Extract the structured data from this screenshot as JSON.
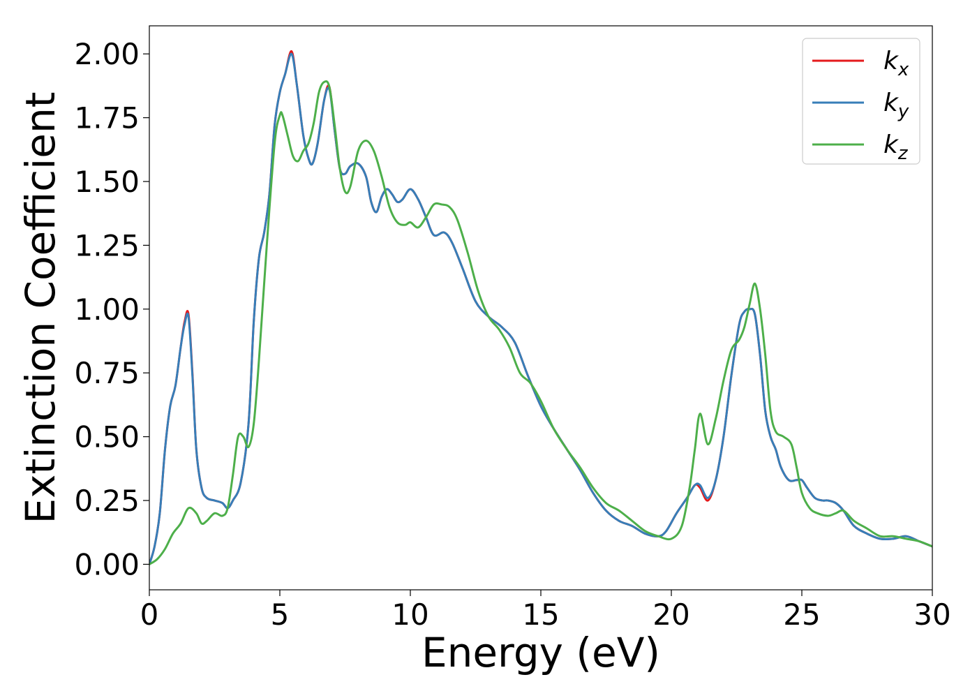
{
  "chart_data": {
    "type": "line",
    "title": "",
    "xlabel": "Energy (eV)",
    "ylabel": "Extinction Coefficient",
    "xlim": [
      0,
      30
    ],
    "ylim": [
      -0.1,
      2.11
    ],
    "xticks": [
      0,
      5,
      10,
      15,
      20,
      25,
      30
    ],
    "xtick_labels": [
      "0",
      "5",
      "10",
      "15",
      "20",
      "25",
      "30"
    ],
    "yticks": [
      0.0,
      0.25,
      0.5,
      0.75,
      1.0,
      1.25,
      1.5,
      1.75,
      2.0
    ],
    "ytick_labels": [
      "0.00",
      "0.25",
      "0.50",
      "0.75",
      "1.00",
      "1.25",
      "1.50",
      "1.75",
      "2.00"
    ],
    "grid": false,
    "legend_position": "top-right",
    "series": [
      {
        "name": "k",
        "subscript": "x",
        "color": "#e41a1c",
        "x": [
          0,
          0.2,
          0.4,
          0.6,
          0.8,
          1.0,
          1.2,
          1.35,
          1.5,
          1.65,
          1.8,
          2.0,
          2.2,
          2.5,
          2.8,
          3.0,
          3.2,
          3.5,
          3.8,
          4.0,
          4.2,
          4.4,
          4.6,
          4.8,
          5.0,
          5.2,
          5.45,
          5.65,
          5.9,
          6.1,
          6.25,
          6.45,
          6.7,
          6.9,
          7.1,
          7.3,
          7.5,
          7.7,
          8.0,
          8.3,
          8.5,
          8.7,
          8.9,
          9.1,
          9.3,
          9.5,
          9.7,
          10.0,
          10.3,
          10.6,
          10.9,
          11.3,
          11.6,
          12.0,
          12.5,
          13.0,
          13.5,
          14.0,
          14.5,
          15.0,
          15.5,
          16.0,
          16.5,
          17.0,
          17.5,
          18.0,
          18.5,
          19.0,
          19.5,
          19.8,
          20.2,
          20.6,
          20.9,
          21.1,
          21.4,
          21.7,
          22.0,
          22.3,
          22.6,
          22.8,
          23.0,
          23.2,
          23.4,
          23.6,
          23.8,
          24.0,
          24.2,
          24.5,
          24.8,
          25.0,
          25.2,
          25.5,
          25.8,
          26.0,
          26.3,
          26.6,
          27.0,
          27.5,
          28.0,
          28.5,
          29.0,
          29.5,
          30.0
        ],
        "y": [
          0.0,
          0.07,
          0.2,
          0.45,
          0.62,
          0.7,
          0.85,
          0.95,
          0.98,
          0.75,
          0.45,
          0.3,
          0.26,
          0.25,
          0.24,
          0.22,
          0.25,
          0.32,
          0.55,
          0.95,
          1.2,
          1.3,
          1.45,
          1.72,
          1.85,
          1.92,
          2.01,
          1.88,
          1.68,
          1.59,
          1.57,
          1.65,
          1.82,
          1.87,
          1.7,
          1.55,
          1.53,
          1.56,
          1.57,
          1.52,
          1.42,
          1.38,
          1.44,
          1.47,
          1.45,
          1.42,
          1.43,
          1.47,
          1.43,
          1.36,
          1.29,
          1.3,
          1.26,
          1.16,
          1.03,
          0.97,
          0.93,
          0.87,
          0.74,
          0.62,
          0.53,
          0.45,
          0.37,
          0.28,
          0.21,
          0.17,
          0.15,
          0.12,
          0.11,
          0.13,
          0.2,
          0.26,
          0.31,
          0.3,
          0.25,
          0.33,
          0.5,
          0.74,
          0.94,
          0.99,
          1.0,
          0.98,
          0.82,
          0.6,
          0.5,
          0.45,
          0.38,
          0.33,
          0.33,
          0.33,
          0.3,
          0.26,
          0.25,
          0.25,
          0.24,
          0.21,
          0.15,
          0.12,
          0.1,
          0.1,
          0.11,
          0.09,
          0.07
        ]
      },
      {
        "name": "k",
        "subscript": "y",
        "color": "#377eb8",
        "x": [
          0,
          0.2,
          0.4,
          0.6,
          0.8,
          1.0,
          1.2,
          1.35,
          1.5,
          1.65,
          1.8,
          2.0,
          2.2,
          2.5,
          2.8,
          3.0,
          3.2,
          3.5,
          3.8,
          4.0,
          4.2,
          4.4,
          4.6,
          4.8,
          5.0,
          5.2,
          5.45,
          5.65,
          5.9,
          6.1,
          6.25,
          6.45,
          6.7,
          6.9,
          7.1,
          7.3,
          7.5,
          7.7,
          8.0,
          8.3,
          8.5,
          8.7,
          8.9,
          9.1,
          9.3,
          9.5,
          9.7,
          10.0,
          10.3,
          10.6,
          10.9,
          11.3,
          11.6,
          12.0,
          12.5,
          13.0,
          13.5,
          14.0,
          14.5,
          15.0,
          15.5,
          16.0,
          16.5,
          17.0,
          17.5,
          18.0,
          18.5,
          19.0,
          19.5,
          19.8,
          20.2,
          20.6,
          20.9,
          21.1,
          21.4,
          21.7,
          22.0,
          22.3,
          22.6,
          22.8,
          23.0,
          23.2,
          23.4,
          23.6,
          23.8,
          24.0,
          24.2,
          24.5,
          24.8,
          25.0,
          25.2,
          25.5,
          25.8,
          26.0,
          26.3,
          26.6,
          27.0,
          27.5,
          28.0,
          28.5,
          29.0,
          29.5,
          30.0
        ],
        "y": [
          0.0,
          0.07,
          0.2,
          0.45,
          0.62,
          0.7,
          0.85,
          0.94,
          0.97,
          0.74,
          0.45,
          0.3,
          0.26,
          0.25,
          0.24,
          0.22,
          0.25,
          0.32,
          0.55,
          0.95,
          1.2,
          1.3,
          1.45,
          1.72,
          1.85,
          1.92,
          2.0,
          1.88,
          1.68,
          1.59,
          1.57,
          1.65,
          1.82,
          1.86,
          1.7,
          1.55,
          1.53,
          1.56,
          1.57,
          1.52,
          1.42,
          1.38,
          1.44,
          1.47,
          1.45,
          1.42,
          1.43,
          1.47,
          1.43,
          1.36,
          1.29,
          1.3,
          1.26,
          1.16,
          1.03,
          0.97,
          0.93,
          0.87,
          0.74,
          0.62,
          0.53,
          0.45,
          0.37,
          0.28,
          0.21,
          0.17,
          0.15,
          0.12,
          0.11,
          0.13,
          0.2,
          0.26,
          0.31,
          0.31,
          0.26,
          0.33,
          0.5,
          0.74,
          0.94,
          0.99,
          1.0,
          0.98,
          0.82,
          0.6,
          0.5,
          0.45,
          0.38,
          0.33,
          0.33,
          0.33,
          0.3,
          0.26,
          0.25,
          0.25,
          0.24,
          0.21,
          0.15,
          0.12,
          0.1,
          0.1,
          0.11,
          0.09,
          0.07
        ]
      },
      {
        "name": "k",
        "subscript": "z",
        "color": "#4daf4a",
        "x": [
          0,
          0.3,
          0.6,
          0.9,
          1.2,
          1.5,
          1.8,
          2.0,
          2.2,
          2.5,
          2.8,
          3.0,
          3.2,
          3.4,
          3.6,
          3.8,
          4.0,
          4.2,
          4.5,
          4.8,
          5.0,
          5.1,
          5.3,
          5.5,
          5.7,
          5.9,
          6.1,
          6.3,
          6.5,
          6.7,
          6.9,
          7.1,
          7.3,
          7.5,
          7.7,
          8.0,
          8.3,
          8.6,
          8.9,
          9.2,
          9.5,
          9.8,
          10.0,
          10.3,
          10.6,
          10.9,
          11.2,
          11.5,
          11.8,
          12.2,
          12.6,
          13.0,
          13.4,
          13.8,
          14.2,
          14.6,
          15.0,
          15.5,
          16.0,
          16.5,
          17.0,
          17.5,
          18.0,
          18.5,
          19.0,
          19.5,
          20.0,
          20.4,
          20.7,
          20.9,
          21.1,
          21.4,
          21.7,
          22.0,
          22.3,
          22.6,
          22.8,
          23.0,
          23.2,
          23.4,
          23.6,
          23.8,
          24.0,
          24.3,
          24.6,
          24.8,
          25.0,
          25.3,
          25.6,
          26.0,
          26.3,
          26.6,
          27.0,
          27.5,
          28.0,
          28.5,
          29.0,
          29.5,
          30.0
        ],
        "y": [
          0.0,
          0.02,
          0.06,
          0.12,
          0.16,
          0.22,
          0.2,
          0.16,
          0.17,
          0.2,
          0.19,
          0.22,
          0.35,
          0.5,
          0.5,
          0.46,
          0.55,
          0.8,
          1.25,
          1.65,
          1.76,
          1.76,
          1.68,
          1.6,
          1.58,
          1.62,
          1.65,
          1.73,
          1.85,
          1.89,
          1.87,
          1.72,
          1.55,
          1.46,
          1.48,
          1.62,
          1.66,
          1.62,
          1.52,
          1.4,
          1.34,
          1.33,
          1.34,
          1.32,
          1.36,
          1.41,
          1.41,
          1.4,
          1.35,
          1.22,
          1.07,
          0.97,
          0.92,
          0.85,
          0.75,
          0.71,
          0.64,
          0.53,
          0.45,
          0.38,
          0.3,
          0.24,
          0.21,
          0.17,
          0.13,
          0.11,
          0.1,
          0.15,
          0.3,
          0.45,
          0.59,
          0.47,
          0.57,
          0.72,
          0.84,
          0.88,
          0.93,
          1.02,
          1.1,
          1.0,
          0.82,
          0.6,
          0.52,
          0.5,
          0.47,
          0.38,
          0.28,
          0.22,
          0.2,
          0.19,
          0.2,
          0.21,
          0.17,
          0.14,
          0.11,
          0.11,
          0.1,
          0.09,
          0.07
        ]
      }
    ]
  }
}
